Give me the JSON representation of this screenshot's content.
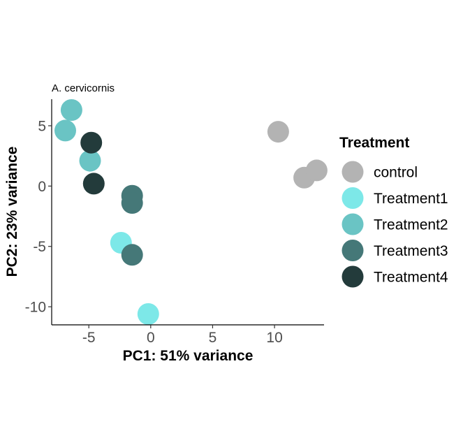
{
  "chart_data": {
    "type": "scatter",
    "title": "A. cervicornis",
    "xlabel": "PC1: 51% variance",
    "ylabel": "PC2: 23% variance",
    "xlim": [
      -8,
      14
    ],
    "ylim": [
      -11.5,
      7.2
    ],
    "xticks": [
      -5,
      0,
      5,
      10
    ],
    "yticks": [
      -10,
      -5,
      0,
      5
    ],
    "grid": false,
    "legend": {
      "title": "Treatment",
      "position": "right"
    },
    "series": [
      {
        "name": "control",
        "color": "#b3b3b3",
        "points": [
          [
            10.3,
            4.5
          ],
          [
            12.4,
            0.7
          ],
          [
            13.4,
            1.3
          ]
        ]
      },
      {
        "name": "Treatment1",
        "color": "#7de8e8",
        "points": [
          [
            -2.4,
            -4.7
          ],
          [
            -0.2,
            -10.6
          ]
        ]
      },
      {
        "name": "Treatment2",
        "color": "#6ac4c4",
        "points": [
          [
            -6.4,
            6.3
          ],
          [
            -6.9,
            4.6
          ],
          [
            -4.9,
            2.1
          ]
        ]
      },
      {
        "name": "Treatment3",
        "color": "#457878",
        "points": [
          [
            -1.5,
            -0.8
          ],
          [
            -1.5,
            -1.4
          ],
          [
            -1.5,
            -5.7
          ]
        ]
      },
      {
        "name": "Treatment4",
        "color": "#233b3b",
        "points": [
          [
            -4.8,
            3.6
          ],
          [
            -4.6,
            0.2
          ]
        ]
      }
    ]
  }
}
